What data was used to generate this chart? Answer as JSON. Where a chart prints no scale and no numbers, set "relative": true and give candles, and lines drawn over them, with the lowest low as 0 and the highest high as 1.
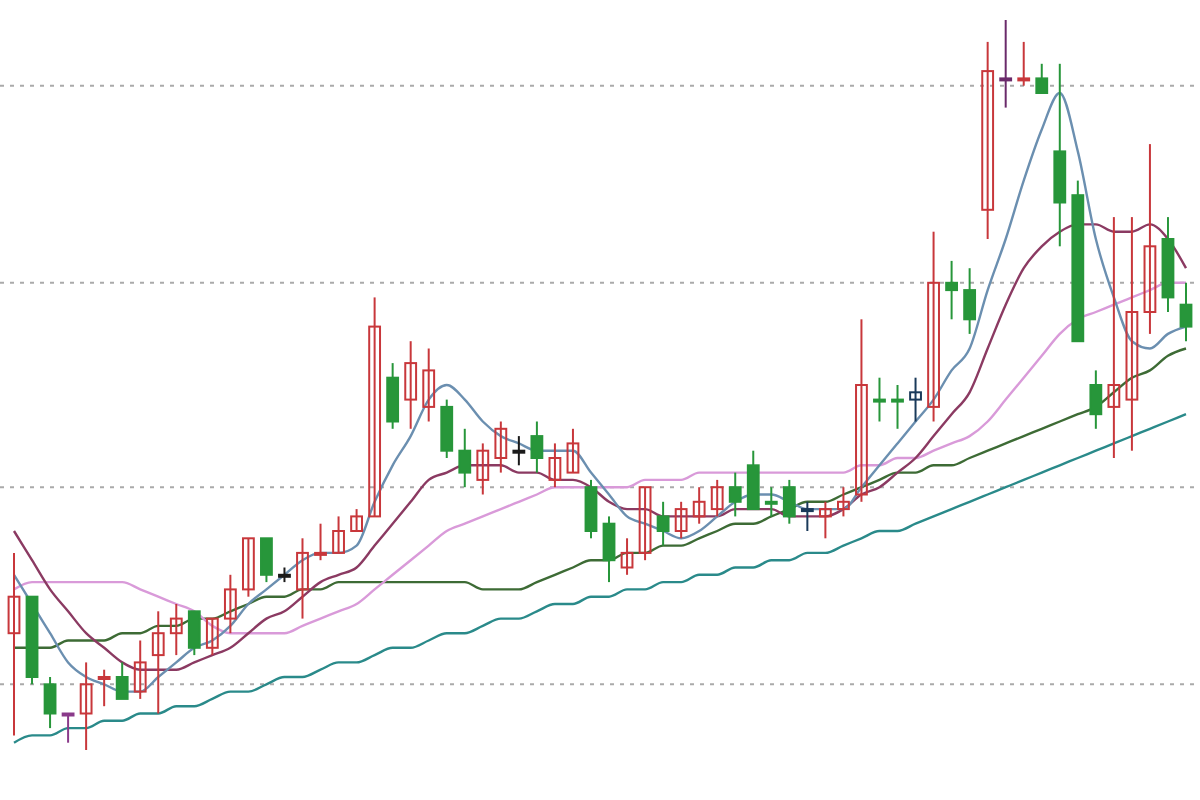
{
  "chart_data": {
    "type": "candlestick",
    "relative": true,
    "categories": [
      null,
      null,
      null,
      null,
      null,
      null,
      null,
      null,
      null,
      null,
      null,
      null,
      null,
      null,
      null,
      null,
      null,
      null,
      null,
      null,
      null,
      null,
      null,
      null,
      null,
      null,
      null,
      null,
      null,
      null,
      null,
      null,
      null,
      null,
      null,
      null,
      null,
      null,
      null,
      null,
      null,
      null,
      null,
      null,
      null,
      null,
      null,
      null,
      null,
      null,
      null,
      null,
      null,
      null,
      null,
      null,
      null,
      null,
      null,
      null,
      null,
      null,
      null,
      null,
      null,
      null
    ],
    "ohlc": [
      [
        0.16,
        0.27,
        0.02,
        0.21
      ],
      [
        0.21,
        0.21,
        0.09,
        0.1
      ],
      [
        0.09,
        0.1,
        0.03,
        0.05
      ],
      [
        0.05,
        0.05,
        0.01,
        0.05
      ],
      [
        0.05,
        0.12,
        0,
        0.09
      ],
      [
        0.1,
        0.11,
        0.06,
        0.1
      ],
      [
        0.1,
        0.12,
        0.07,
        0.07
      ],
      [
        0.08,
        0.15,
        0.07,
        0.12
      ],
      [
        0.13,
        0.19,
        0.05,
        0.16
      ],
      [
        0.16,
        0.2,
        0.13,
        0.18
      ],
      [
        0.19,
        0.19,
        0.13,
        0.14
      ],
      [
        0.14,
        0.18,
        0.13,
        0.18
      ],
      [
        0.18,
        0.24,
        0.16,
        0.22
      ],
      [
        0.22,
        0.29,
        0.21,
        0.29
      ],
      [
        0.29,
        0.29,
        0.23,
        0.24
      ],
      [
        0.24,
        0.25,
        0.23,
        0.24
      ],
      [
        0.22,
        0.29,
        0.18,
        0.27
      ],
      [
        0.27,
        0.31,
        0.26,
        0.27
      ],
      [
        0.27,
        0.32,
        0.27,
        0.3
      ],
      [
        0.3,
        0.33,
        0.3,
        0.32
      ],
      [
        0.32,
        0.62,
        0.32,
        0.58
      ],
      [
        0.51,
        0.53,
        0.44,
        0.45
      ],
      [
        0.48,
        0.56,
        0.44,
        0.53
      ],
      [
        0.47,
        0.55,
        0.45,
        0.52
      ],
      [
        0.47,
        0.48,
        0.4,
        0.41
      ],
      [
        0.41,
        0.44,
        0.36,
        0.38
      ],
      [
        0.37,
        0.42,
        0.35,
        0.41
      ],
      [
        0.4,
        0.45,
        0.38,
        0.44
      ],
      [
        0.41,
        0.43,
        0.39,
        0.41
      ],
      [
        0.43,
        0.45,
        0.38,
        0.4
      ],
      [
        0.37,
        0.42,
        0.36,
        0.4
      ],
      [
        0.38,
        0.44,
        0.38,
        0.42
      ],
      [
        0.36,
        0.37,
        0.29,
        0.3
      ],
      [
        0.31,
        0.32,
        0.23,
        0.26
      ],
      [
        0.25,
        0.29,
        0.24,
        0.27
      ],
      [
        0.27,
        0.36,
        0.26,
        0.36
      ],
      [
        0.32,
        0.34,
        0.28,
        0.3
      ],
      [
        0.3,
        0.34,
        0.29,
        0.33
      ],
      [
        0.32,
        0.36,
        0.31,
        0.34
      ],
      [
        0.33,
        0.37,
        0.32,
        0.36
      ],
      [
        0.36,
        0.38,
        0.32,
        0.34
      ],
      [
        0.39,
        0.41,
        0.33,
        0.33
      ],
      [
        0.34,
        0.36,
        0.32,
        0.34
      ],
      [
        0.36,
        0.37,
        0.31,
        0.32
      ],
      [
        0.33,
        0.34,
        0.3,
        0.33
      ],
      [
        0.32,
        0.34,
        0.29,
        0.33
      ],
      [
        0.33,
        0.36,
        0.32,
        0.34
      ],
      [
        0.35,
        0.59,
        0.34,
        0.5
      ],
      [
        0.48,
        0.51,
        0.45,
        0.48
      ],
      [
        0.48,
        0.5,
        0.44,
        0.48
      ],
      [
        0.48,
        0.51,
        0.45,
        0.49
      ],
      [
        0.47,
        0.71,
        0.45,
        0.64
      ],
      [
        0.64,
        0.67,
        0.59,
        0.63
      ],
      [
        0.63,
        0.66,
        0.57,
        0.59
      ],
      [
        0.74,
        0.97,
        0.7,
        0.93
      ],
      [
        0.92,
        1,
        0.88,
        0.92
      ],
      [
        0.92,
        0.97,
        0.91,
        0.92
      ],
      [
        0.92,
        0.94,
        0.9,
        0.9
      ],
      [
        0.82,
        0.94,
        0.69,
        0.75
      ],
      [
        0.76,
        0.78,
        0.56,
        0.56
      ],
      [
        0.5,
        0.52,
        0.44,
        0.46
      ],
      [
        0.47,
        0.73,
        0.4,
        0.5
      ],
      [
        0.48,
        0.73,
        0.41,
        0.6
      ],
      [
        0.6,
        0.83,
        0.57,
        0.69
      ],
      [
        0.7,
        0.73,
        0.6,
        0.62
      ],
      [
        0.61,
        0.64,
        0.56,
        0.58
      ]
    ],
    "colors": [
      "#c8373b",
      "#27963a",
      "#27963a",
      "#8a3a8a",
      "#c8373b",
      "#c8373b",
      "#27963a",
      "#c8373b",
      "#c8373b",
      "#c8373b",
      "#27963a",
      "#c8373b",
      "#c8373b",
      "#c8373b",
      "#27963a",
      "#1a1a1a",
      "#c8373b",
      "#c8373b",
      "#c8373b",
      "#c8373b",
      "#c8373b",
      "#27963a",
      "#c8373b",
      "#c8373b",
      "#27963a",
      "#27963a",
      "#c8373b",
      "#c8373b",
      "#1a1a1a",
      "#27963a",
      "#c8373b",
      "#c8373b",
      "#27963a",
      "#27963a",
      "#c8373b",
      "#c8373b",
      "#27963a",
      "#c8373b",
      "#c8373b",
      "#c8373b",
      "#27963a",
      "#27963a",
      "#27963a",
      "#27963a",
      "#1a3a5a",
      "#c8373b",
      "#c8373b",
      "#c8373b",
      "#27963a",
      "#27963a",
      "#1a3a5a",
      "#c8373b",
      "#27963a",
      "#27963a",
      "#c8373b",
      "#6a2a6a",
      "#c8373b",
      "#27963a",
      "#27963a",
      "#27963a",
      "#27963a",
      "#c8373b",
      "#c8373b",
      "#c8373b",
      "#27963a",
      "#27963a"
    ],
    "series": [
      {
        "type": "line",
        "color": "#2a8a8a",
        "values": [
          0.01,
          0.02,
          0.02,
          0.03,
          0.03,
          0.04,
          0.04,
          0.05,
          0.05,
          0.06,
          0.06,
          0.07,
          0.08,
          0.08,
          0.09,
          0.1,
          0.1,
          0.11,
          0.12,
          0.12,
          0.13,
          0.14,
          0.14,
          0.15,
          0.16,
          0.16,
          0.17,
          0.18,
          0.18,
          0.19,
          0.2,
          0.2,
          0.21,
          0.21,
          0.22,
          0.22,
          0.23,
          0.23,
          0.24,
          0.24,
          0.25,
          0.25,
          0.26,
          0.26,
          0.27,
          0.27,
          0.28,
          0.29,
          0.3,
          0.3,
          0.31,
          0.32,
          0.33,
          0.34,
          0.35,
          0.36,
          0.37,
          0.38,
          0.39,
          0.4,
          0.41,
          0.42,
          0.43,
          0.44,
          0.45,
          0.46
        ]
      },
      {
        "type": "line",
        "color": "#3d6b35",
        "values": [
          0.14,
          0.14,
          0.14,
          0.15,
          0.15,
          0.15,
          0.16,
          0.16,
          0.17,
          0.17,
          0.18,
          0.18,
          0.19,
          0.2,
          0.21,
          0.21,
          0.22,
          0.22,
          0.23,
          0.23,
          0.23,
          0.23,
          0.23,
          0.23,
          0.23,
          0.23,
          0.22,
          0.22,
          0.22,
          0.23,
          0.24,
          0.25,
          0.26,
          0.26,
          0.27,
          0.27,
          0.28,
          0.28,
          0.29,
          0.3,
          0.31,
          0.31,
          0.32,
          0.33,
          0.34,
          0.34,
          0.35,
          0.36,
          0.37,
          0.38,
          0.38,
          0.39,
          0.39,
          0.4,
          0.41,
          0.42,
          0.43,
          0.44,
          0.45,
          0.46,
          0.47,
          0.49,
          0.51,
          0.52,
          0.54,
          0.55
        ]
      },
      {
        "type": "line",
        "color": "#d99ad9",
        "values": [
          0.22,
          0.23,
          0.23,
          0.23,
          0.23,
          0.23,
          0.23,
          0.22,
          0.21,
          0.2,
          0.19,
          0.17,
          0.16,
          0.16,
          0.16,
          0.16,
          0.17,
          0.18,
          0.19,
          0.2,
          0.22,
          0.24,
          0.26,
          0.28,
          0.3,
          0.31,
          0.32,
          0.33,
          0.34,
          0.35,
          0.36,
          0.36,
          0.36,
          0.36,
          0.36,
          0.37,
          0.37,
          0.37,
          0.38,
          0.38,
          0.38,
          0.38,
          0.38,
          0.38,
          0.38,
          0.38,
          0.38,
          0.39,
          0.39,
          0.4,
          0.4,
          0.41,
          0.42,
          0.43,
          0.45,
          0.48,
          0.51,
          0.54,
          0.57,
          0.59,
          0.6,
          0.61,
          0.62,
          0.63,
          0.64,
          0.64
        ]
      },
      {
        "type": "line",
        "color": "#8b3a62",
        "values": [
          0.3,
          0.26,
          0.22,
          0.19,
          0.16,
          0.14,
          0.12,
          0.11,
          0.11,
          0.11,
          0.12,
          0.13,
          0.14,
          0.16,
          0.18,
          0.19,
          0.21,
          0.23,
          0.24,
          0.25,
          0.28,
          0.31,
          0.34,
          0.37,
          0.38,
          0.39,
          0.39,
          0.39,
          0.38,
          0.38,
          0.37,
          0.37,
          0.36,
          0.34,
          0.33,
          0.33,
          0.32,
          0.32,
          0.32,
          0.32,
          0.33,
          0.33,
          0.33,
          0.32,
          0.32,
          0.32,
          0.33,
          0.35,
          0.36,
          0.38,
          0.4,
          0.43,
          0.46,
          0.49,
          0.55,
          0.61,
          0.66,
          0.69,
          0.71,
          0.72,
          0.72,
          0.71,
          0.71,
          0.72,
          0.7,
          0.66
        ]
      },
      {
        "type": "line",
        "color": "#6b8fb0",
        "values": [
          0.24,
          0.2,
          0.16,
          0.12,
          0.1,
          0.09,
          0.08,
          0.08,
          0.1,
          0.12,
          0.14,
          0.15,
          0.17,
          0.2,
          0.22,
          0.24,
          0.26,
          0.27,
          0.27,
          0.28,
          0.34,
          0.39,
          0.43,
          0.48,
          0.5,
          0.48,
          0.45,
          0.43,
          0.42,
          0.41,
          0.41,
          0.41,
          0.38,
          0.35,
          0.32,
          0.31,
          0.3,
          0.29,
          0.3,
          0.32,
          0.34,
          0.35,
          0.35,
          0.34,
          0.33,
          0.33,
          0.33,
          0.36,
          0.39,
          0.42,
          0.45,
          0.48,
          0.52,
          0.55,
          0.63,
          0.7,
          0.78,
          0.85,
          0.9,
          0.82,
          0.7,
          0.62,
          0.56,
          0.55,
          0.57,
          0.58
        ]
      }
    ],
    "ref_lines": [
      {
        "axis": "y",
        "value": 0.91,
        "color": "#aaaaaa",
        "line_style": "dotted"
      },
      {
        "axis": "y",
        "value": 0.64,
        "color": "#aaaaaa",
        "line_style": "dotted"
      },
      {
        "axis": "y",
        "value": 0.36,
        "color": "#aaaaaa",
        "line_style": "dotted"
      },
      {
        "axis": "y",
        "value": 0.09,
        "color": "#aaaaaa",
        "line_style": "dotted"
      }
    ]
  }
}
